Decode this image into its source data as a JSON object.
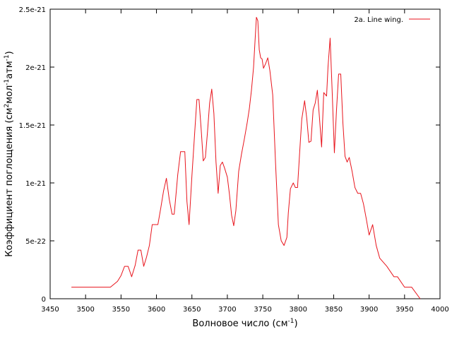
{
  "chart_data": {
    "type": "line",
    "xlabel": "Волновое число (см",
    "xlabel_sup": "-1",
    "xlabel_end": ")",
    "ylabel_parts": [
      "Коэффициент поглощения (см",
      "2",
      "мол",
      "-1",
      "атм",
      "-1",
      ")"
    ],
    "xlim": [
      3450,
      4000
    ],
    "ylim": [
      0,
      2.5e-21
    ],
    "xticks": [
      3450,
      3500,
      3550,
      3600,
      3650,
      3700,
      3750,
      3800,
      3850,
      3900,
      3950,
      4000
    ],
    "xtick_labels": [
      "3450",
      "3500",
      "3550",
      "3600",
      "3650",
      "3700",
      "3750",
      "3800",
      "3850",
      "3900",
      "3950",
      "4000"
    ],
    "yticks": [
      0,
      5e-22,
      1e-21,
      1.5e-21,
      2e-21,
      2.5e-21
    ],
    "ytick_labels": [
      "0",
      "5e-22",
      "1e-21",
      "1.5e-21",
      "2e-21",
      "2.5e-21"
    ],
    "grid": false,
    "legend_position": "top-right",
    "series": [
      {
        "name": "2a. Line wing.",
        "color": "#e8141c",
        "x": [
          3480,
          3535,
          3545,
          3550,
          3555,
          3560,
          3565,
          3570,
          3574,
          3578,
          3582,
          3586,
          3590,
          3594,
          3598,
          3602,
          3606,
          3610,
          3614,
          3618,
          3622,
          3625,
          3628,
          3630,
          3634,
          3637,
          3640,
          3643,
          3646,
          3650,
          3654,
          3657,
          3660,
          3663,
          3666,
          3669,
          3672,
          3675,
          3678,
          3681,
          3684,
          3687,
          3690,
          3693,
          3696,
          3700,
          3703,
          3706,
          3709,
          3712,
          3716,
          3720,
          3724,
          3728,
          3731,
          3734,
          3737,
          3739,
          3741,
          3743,
          3745,
          3747,
          3749,
          3751,
          3754,
          3757,
          3760,
          3764,
          3768,
          3772,
          3776,
          3780,
          3784,
          3786,
          3789,
          3793,
          3796,
          3799,
          3803,
          3805,
          3809,
          3812,
          3815,
          3818,
          3821,
          3824,
          3827,
          3830,
          3833,
          3836,
          3840,
          3842,
          3845,
          3848,
          3851,
          3854,
          3857,
          3860,
          3863,
          3866,
          3869,
          3872,
          3876,
          3880,
          3884,
          3888,
          3892,
          3896,
          3900,
          3905,
          3910,
          3915,
          3925,
          3935,
          3940,
          3950,
          3960,
          3972
        ],
        "values": [
          1e-22,
          1e-22,
          1.5e-22,
          2e-22,
          2.8e-22,
          2.8e-22,
          1.9e-22,
          2.9e-22,
          4.2e-22,
          4.2e-22,
          2.8e-22,
          3.6e-22,
          4.6e-22,
          6.4e-22,
          6.4e-22,
          6.4e-22,
          7.8e-22,
          9.3e-22,
          1.04e-21,
          8.6e-22,
          7.3e-22,
          7.3e-22,
          9.3e-22,
          1.07e-21,
          1.27e-21,
          1.27e-21,
          1.27e-21,
          8.4e-22,
          6.4e-22,
          1.06e-21,
          1.44e-21,
          1.72e-21,
          1.72e-21,
          1.47e-21,
          1.19e-21,
          1.22e-21,
          1.44e-21,
          1.69e-21,
          1.81e-21,
          1.6e-21,
          1.18e-21,
          9.1e-22,
          1.15e-21,
          1.18e-21,
          1.13e-21,
          1.05e-21,
          9e-22,
          7.2e-22,
          6.3e-22,
          7.6e-22,
          1.1e-21,
          1.25e-21,
          1.38e-21,
          1.52e-21,
          1.64e-21,
          1.8e-21,
          2e-21,
          2.22e-21,
          2.43e-21,
          2.4e-21,
          2.15e-21,
          2.08e-21,
          2.07e-21,
          1.99e-21,
          2.03e-21,
          2.08e-21,
          1.97e-21,
          1.76e-21,
          1.17e-21,
          6.4e-22,
          5e-22,
          4.6e-22,
          5.3e-22,
          7.4e-22,
          9.5e-22,
          1e-21,
          9.6e-22,
          9.6e-22,
          1.36e-21,
          1.55e-21,
          1.71e-21,
          1.56e-21,
          1.35e-21,
          1.36e-21,
          1.63e-21,
          1.69e-21,
          1.8e-21,
          1.56e-21,
          1.31e-21,
          1.78e-21,
          1.75e-21,
          2e-21,
          2.25e-21,
          1.77e-21,
          1.26e-21,
          1.63e-21,
          1.94e-21,
          1.94e-21,
          1.52e-21,
          1.23e-21,
          1.18e-21,
          1.22e-21,
          1.1e-21,
          9.6e-22,
          9.1e-22,
          9.1e-22,
          8.2e-22,
          6.9e-22,
          5.5e-22,
          6.4e-22,
          4.6e-22,
          3.5e-22,
          2.8e-22,
          1.9e-22,
          1.9e-22,
          1e-22,
          1e-22,
          0
        ]
      }
    ]
  }
}
